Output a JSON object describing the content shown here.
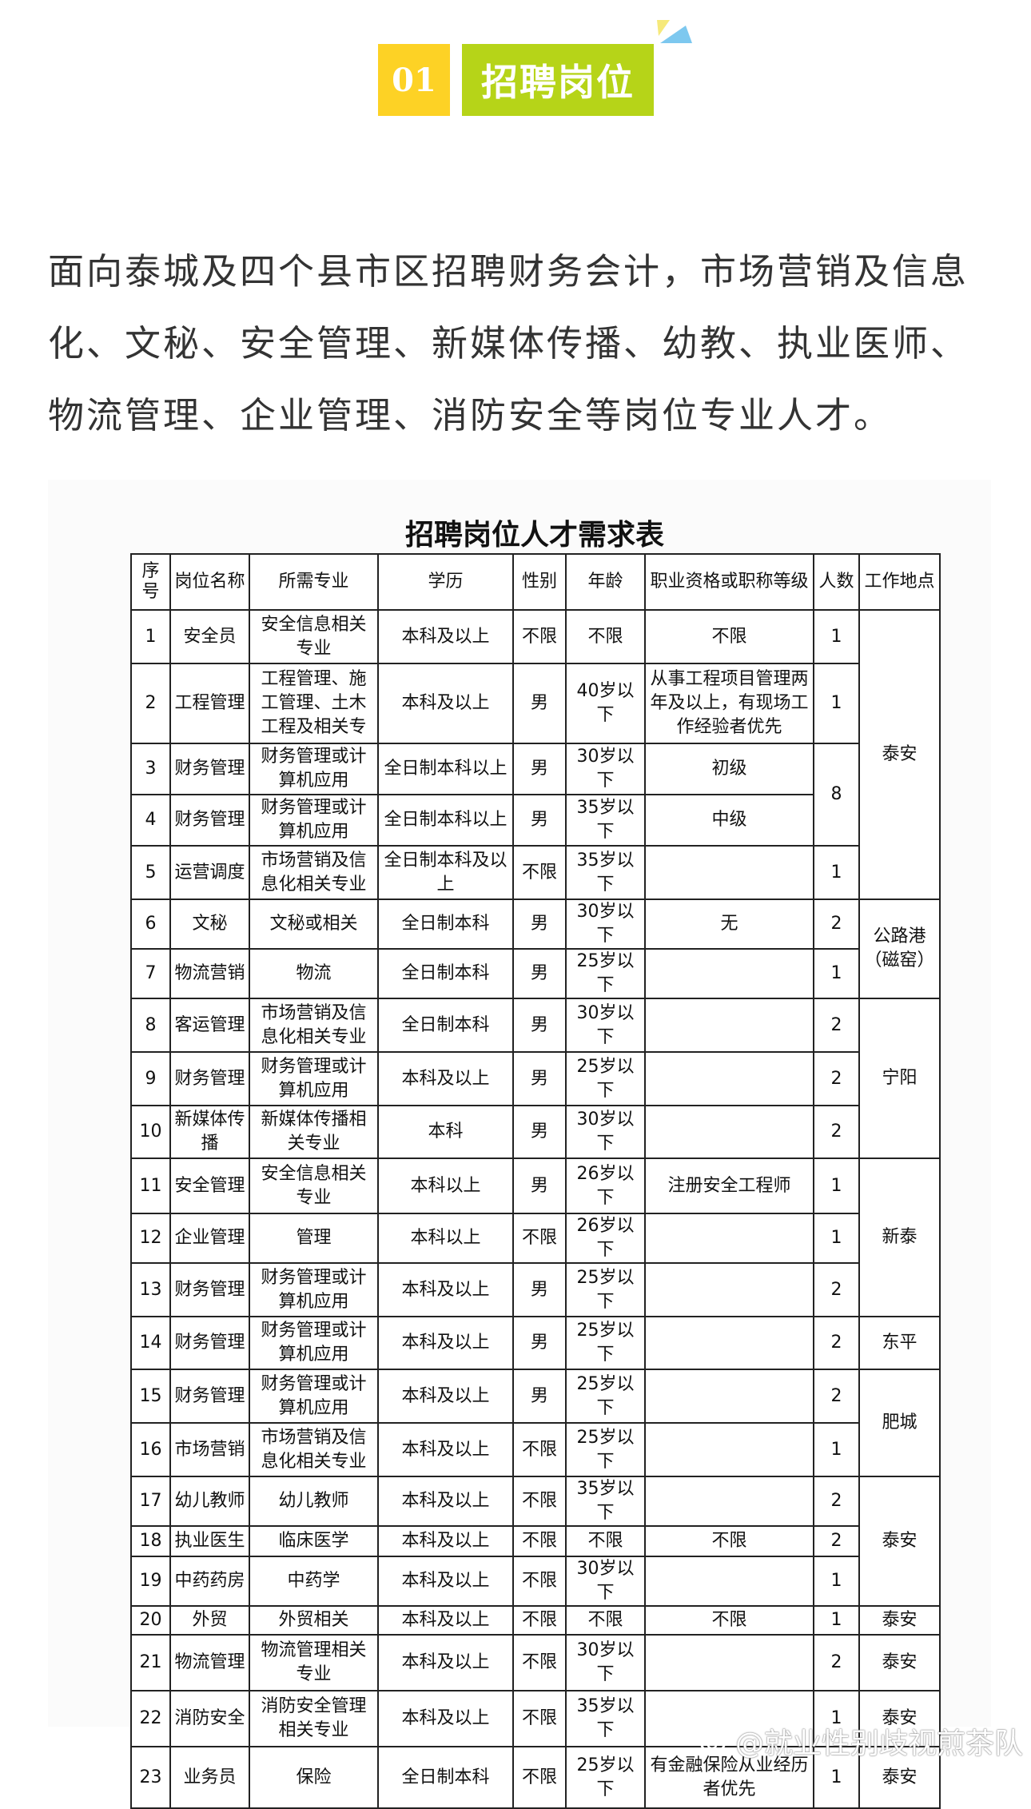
{
  "section": {
    "number": "01",
    "title": "招聘岗位",
    "colors": {
      "number_bg": "#fdd225",
      "title_bg": "#b6d418"
    }
  },
  "intro": "面向泰城及四个县市区招聘财务会计，市场营销及信息化、文秘、安全管理、新媒体传播、幼教、执业医师、物流管理、企业管理、消防安全等岗位专业人才。",
  "table": {
    "title": "招聘岗位人才需求表",
    "headers": [
      "序号",
      "岗位名称",
      "所需专业",
      "学历",
      "性别",
      "年龄",
      "职业资格或职称等级",
      "人数",
      "工作地点"
    ],
    "rows": [
      {
        "no": "1",
        "position": "安全员",
        "major": "安全信息相关专业",
        "education": "本科及以上",
        "gender": "不限",
        "age": "不限",
        "qualification": "不限"
      },
      {
        "no": "2",
        "position": "工程管理",
        "major": "工程管理、施工管理、土木工程及相关专",
        "education": "本科及以上",
        "gender": "男",
        "age": "40岁以下",
        "qualification": "从事工程项目管理两年及以上，有现场工作经验者优先"
      },
      {
        "no": "3",
        "position": "财务管理",
        "major": "财务管理或计算机应用",
        "education": "全日制本科以上",
        "gender": "男",
        "age": "30岁以下",
        "qualification": "初级"
      },
      {
        "no": "4",
        "position": "财务管理",
        "major": "财务管理或计算机应用",
        "education": "全日制本科以上",
        "gender": "男",
        "age": "35岁以下",
        "qualification": "中级"
      },
      {
        "no": "5",
        "position": "运营调度",
        "major": "市场营销及信息化相关专业",
        "education": "全日制本科及以上",
        "gender": "不限",
        "age": "35岁以下",
        "qualification": ""
      },
      {
        "no": "6",
        "position": "文秘",
        "major": "文秘或相关",
        "education": "全日制本科",
        "gender": "男",
        "age": "30岁以下",
        "qualification": "无"
      },
      {
        "no": "7",
        "position": "物流营销",
        "major": "物流",
        "education": "全日制本科",
        "gender": "男",
        "age": "25岁以下",
        "qualification": ""
      },
      {
        "no": "8",
        "position": "客运管理",
        "major": "市场营销及信息化相关专业",
        "education": "全日制本科",
        "gender": "男",
        "age": "30岁以下",
        "qualification": ""
      },
      {
        "no": "9",
        "position": "财务管理",
        "major": "财务管理或计算机应用",
        "education": "本科及以上",
        "gender": "男",
        "age": "25岁以下",
        "qualification": ""
      },
      {
        "no": "10",
        "position": "新媒体传播",
        "major": "新媒体传播相关专业",
        "education": "本科",
        "gender": "男",
        "age": "30岁以下",
        "qualification": ""
      },
      {
        "no": "11",
        "position": "安全管理",
        "major": "安全信息相关专业",
        "education": "本科以上",
        "gender": "男",
        "age": "26岁以下",
        "qualification": "注册安全工程师"
      },
      {
        "no": "12",
        "position": "企业管理",
        "major": "管理",
        "education": "本科以上",
        "gender": "不限",
        "age": "26岁以下",
        "qualification": ""
      },
      {
        "no": "13",
        "position": "财务管理",
        "major": "财务管理或计算机应用",
        "education": "本科及以上",
        "gender": "男",
        "age": "25岁以下",
        "qualification": ""
      },
      {
        "no": "14",
        "position": "财务管理",
        "major": "财务管理或计算机应用",
        "education": "本科及以上",
        "gender": "男",
        "age": "25岁以下",
        "qualification": ""
      },
      {
        "no": "15",
        "position": "财务管理",
        "major": "财务管理或计算机应用",
        "education": "本科及以上",
        "gender": "男",
        "age": "25岁以下",
        "qualification": ""
      },
      {
        "no": "16",
        "position": "市场营销",
        "major": "市场营销及信息化相关专业",
        "education": "本科及以上",
        "gender": "不限",
        "age": "25岁以下",
        "qualification": ""
      },
      {
        "no": "17",
        "position": "幼儿教师",
        "major": "幼儿教师",
        "education": "本科及以上",
        "gender": "不限",
        "age": "35岁以下",
        "qualification": ""
      },
      {
        "no": "18",
        "position": "执业医生",
        "major": "临床医学",
        "education": "本科及以上",
        "gender": "不限",
        "age": "不限",
        "qualification": "不限"
      },
      {
        "no": "19",
        "position": "中药药房",
        "major": "中药学",
        "education": "本科及以上",
        "gender": "不限",
        "age": "30岁以下",
        "qualification": ""
      },
      {
        "no": "20",
        "position": "外贸",
        "major": "外贸相关",
        "education": "本科及以上",
        "gender": "不限",
        "age": "不限",
        "qualification": "不限"
      },
      {
        "no": "21",
        "position": "物流管理",
        "major": "物流管理相关专业",
        "education": "本科及以上",
        "gender": "不限",
        "age": "30岁以下",
        "qualification": ""
      },
      {
        "no": "22",
        "position": "消防安全",
        "major": "消防安全管理相关专业",
        "education": "本科及以上",
        "gender": "不限",
        "age": "35岁以下",
        "qualification": ""
      },
      {
        "no": "23",
        "position": "业务员",
        "major": "保险",
        "education": "全日制本科",
        "gender": "不限",
        "age": "25岁以下",
        "qualification": "有金融保险从业经历者优先"
      }
    ],
    "counts": [
      {
        "rows": "1",
        "value": "1"
      },
      {
        "rows": "2",
        "value": "1"
      },
      {
        "rows": "3-4",
        "value": "8"
      },
      {
        "rows": "5",
        "value": "1"
      },
      {
        "rows": "6",
        "value": "2"
      },
      {
        "rows": "7",
        "value": "1"
      },
      {
        "rows": "8",
        "value": "2"
      },
      {
        "rows": "9",
        "value": "2"
      },
      {
        "rows": "10",
        "value": "2"
      },
      {
        "rows": "11",
        "value": "1"
      },
      {
        "rows": "12",
        "value": "1"
      },
      {
        "rows": "13",
        "value": "2"
      },
      {
        "rows": "14",
        "value": "2"
      },
      {
        "rows": "15",
        "value": "2"
      },
      {
        "rows": "16",
        "value": "1"
      },
      {
        "rows": "17",
        "value": "2"
      },
      {
        "rows": "18",
        "value": "2"
      },
      {
        "rows": "19",
        "value": "1"
      },
      {
        "rows": "20",
        "value": "1"
      },
      {
        "rows": "21",
        "value": "2"
      },
      {
        "rows": "22",
        "value": "1"
      },
      {
        "rows": "23",
        "value": "1"
      }
    ],
    "locations": [
      {
        "rows": "1-5",
        "value": "泰安"
      },
      {
        "rows": "6-7",
        "value": "公路港（磁窑）"
      },
      {
        "rows": "8-10",
        "value": "宁阳"
      },
      {
        "rows": "11-13",
        "value": "新泰"
      },
      {
        "rows": "14",
        "value": "东平"
      },
      {
        "rows": "15-16",
        "value": "肥城"
      },
      {
        "rows": "17-19",
        "value": "泰安"
      },
      {
        "rows": "20",
        "value": "泰安"
      },
      {
        "rows": "21",
        "value": "泰安"
      },
      {
        "rows": "22",
        "value": "泰安"
      },
      {
        "rows": "23",
        "value": "泰安"
      }
    ]
  },
  "watermark": {
    "text": "@就业性别歧视煎茶队",
    "icon": "weibo-icon"
  }
}
